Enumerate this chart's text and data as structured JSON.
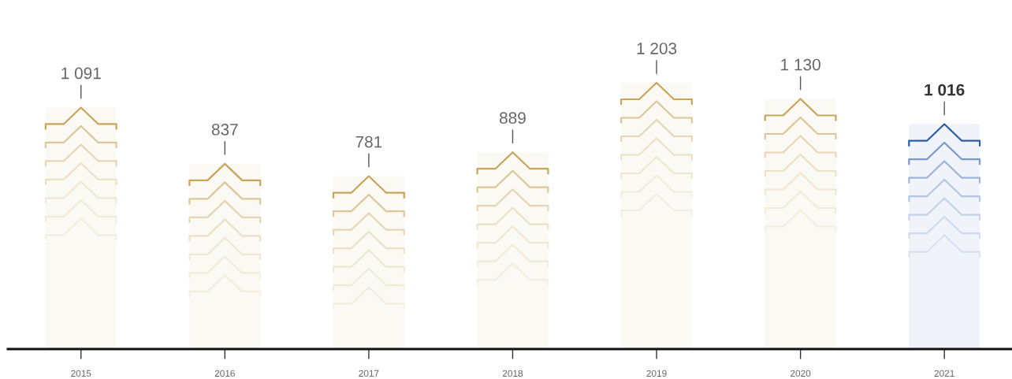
{
  "chart_data": {
    "type": "bar",
    "categories": [
      "2015",
      "2016",
      "2017",
      "2018",
      "2019",
      "2020",
      "2021"
    ],
    "values": [
      1091,
      837,
      781,
      889,
      1203,
      1130,
      1016
    ],
    "value_labels": [
      "1 091",
      "837",
      "781",
      "889",
      "1 203",
      "1 130",
      "1 016"
    ],
    "colors": [
      "#c9a45c",
      "#c9a45c",
      "#c9a45c",
      "#c9a45c",
      "#c9a45c",
      "#c9a45c",
      "#2b5ca8"
    ],
    "tick_labels": "x"
  }
}
